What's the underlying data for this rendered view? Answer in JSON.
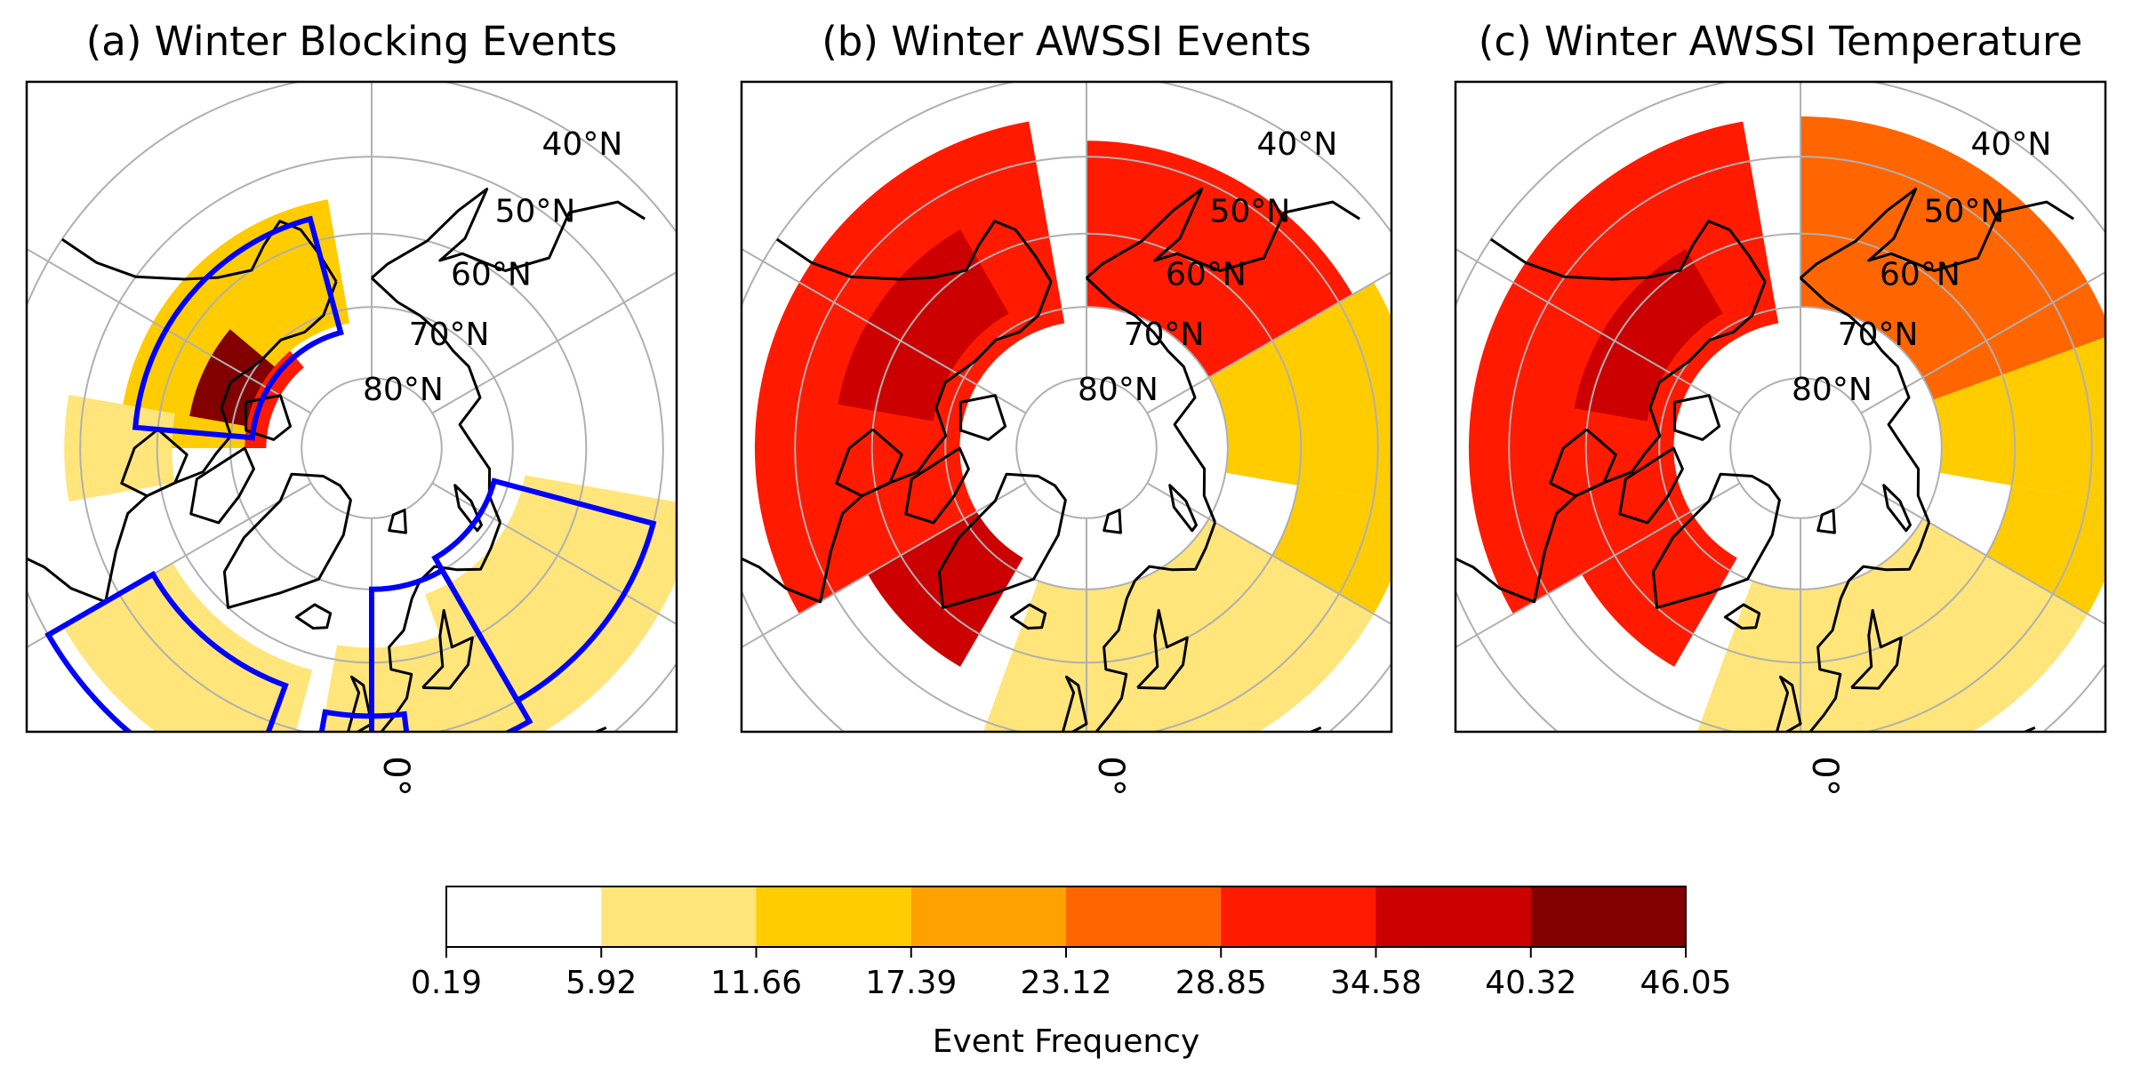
{
  "figure": {
    "colorbar": {
      "label": "Event Frequency",
      "ticks": [
        "0.19",
        "5.92",
        "11.66",
        "17.39",
        "23.12",
        "28.85",
        "34.58",
        "40.32",
        "46.05"
      ],
      "colors": [
        "#ffffff",
        "#ffe57a",
        "#ffcc00",
        "#ffa100",
        "#ff6500",
        "#ff1a00",
        "#cc0000",
        "#820000"
      ]
    },
    "lat_ring_labels": [
      "40°N",
      "50°N",
      "60°N",
      "70°N",
      "80°N"
    ],
    "meridian_label": "0°"
  },
  "chart_data": [
    {
      "type": "heatmap",
      "projection": "north-polar-stereographic",
      "title": "(a) Winter Blocking Events",
      "value_range": [
        0.19,
        46.05
      ],
      "latitude_range": [
        40,
        80
      ],
      "regions": [
        {
          "lon": [
            -140,
            -90
          ],
          "lat": [
            60,
            75
          ],
          "value": 30
        },
        {
          "lon": [
            -170,
            -90
          ],
          "lat": [
            55,
            72
          ],
          "value": 14
        },
        {
          "lon": [
            -130,
            -100
          ],
          "lat": [
            64,
            72
          ],
          "value": 42
        },
        {
          "lon": [
            -100,
            -80
          ],
          "lat": [
            48,
            62
          ],
          "value": 9
        },
        {
          "lon": [
            40,
            70
          ],
          "lat": [
            48,
            64
          ],
          "value": 16
        },
        {
          "lon": [
            20,
            80
          ],
          "lat": [
            45,
            68
          ],
          "value": 9
        },
        {
          "lon": [
            -10,
            20
          ],
          "lat": [
            42,
            62
          ],
          "value": 8
        },
        {
          "lon": [
            -60,
            -15
          ],
          "lat": [
            42,
            58
          ],
          "value": 9
        }
      ],
      "boxes": [
        {
          "lon": [
            -165,
            -95
          ],
          "lat": [
            57,
            73
          ]
        },
        {
          "lon": [
            30,
            75
          ],
          "lat": [
            50,
            72
          ]
        },
        {
          "lon": [
            0,
            30
          ],
          "lat": [
            47,
            70
          ]
        },
        {
          "lon": [
            -10,
            7
          ],
          "lat": [
            35,
            53
          ]
        },
        {
          "lon": [
            -60,
            -20
          ],
          "lat": [
            40,
            55
          ]
        }
      ]
    },
    {
      "type": "heatmap",
      "projection": "north-polar-stereographic",
      "title": "(b) Winter AWSSI Events",
      "value_range": [
        0.19,
        46.05
      ],
      "latitude_range": [
        40,
        80
      ],
      "regions": [
        {
          "lon": [
            -170,
            -60
          ],
          "lat": [
            45,
            72
          ],
          "value": 33
        },
        {
          "lon": [
            -150,
            -100
          ],
          "lat": [
            55,
            68
          ],
          "value": 38
        },
        {
          "lon": [
            120,
            180
          ],
          "lat": [
            48,
            70
          ],
          "value": 30
        },
        {
          "lon": [
            80,
            120
          ],
          "lat": [
            45,
            70
          ],
          "value": 16
        },
        {
          "lon": [
            -60,
            -30
          ],
          "lat": [
            55,
            72
          ],
          "value": 40
        },
        {
          "lon": [
            -20,
            60
          ],
          "lat": [
            45,
            70
          ],
          "value": 9
        },
        {
          "lon": [
            60,
            80
          ],
          "lat": [
            45,
            60
          ],
          "value": 12
        }
      ],
      "boxes": []
    },
    {
      "type": "heatmap",
      "projection": "north-polar-stereographic",
      "title": "(c) Winter AWSSI Temperature",
      "value_range": [
        0.19,
        46.05
      ],
      "latitude_range": [
        40,
        80
      ],
      "regions": [
        {
          "lon": [
            -170,
            -60
          ],
          "lat": [
            45,
            72
          ],
          "value": 32
        },
        {
          "lon": [
            -150,
            -100
          ],
          "lat": [
            58,
            68
          ],
          "value": 40
        },
        {
          "lon": [
            110,
            180
          ],
          "lat": [
            45,
            70
          ],
          "value": 24
        },
        {
          "lon": [
            80,
            110
          ],
          "lat": [
            45,
            70
          ],
          "value": 14
        },
        {
          "lon": [
            -60,
            -30
          ],
          "lat": [
            55,
            72
          ],
          "value": 34
        },
        {
          "lon": [
            -20,
            60
          ],
          "lat": [
            45,
            70
          ],
          "value": 9
        },
        {
          "lon": [
            60,
            80
          ],
          "lat": [
            45,
            60
          ],
          "value": 12
        }
      ],
      "boxes": []
    }
  ]
}
